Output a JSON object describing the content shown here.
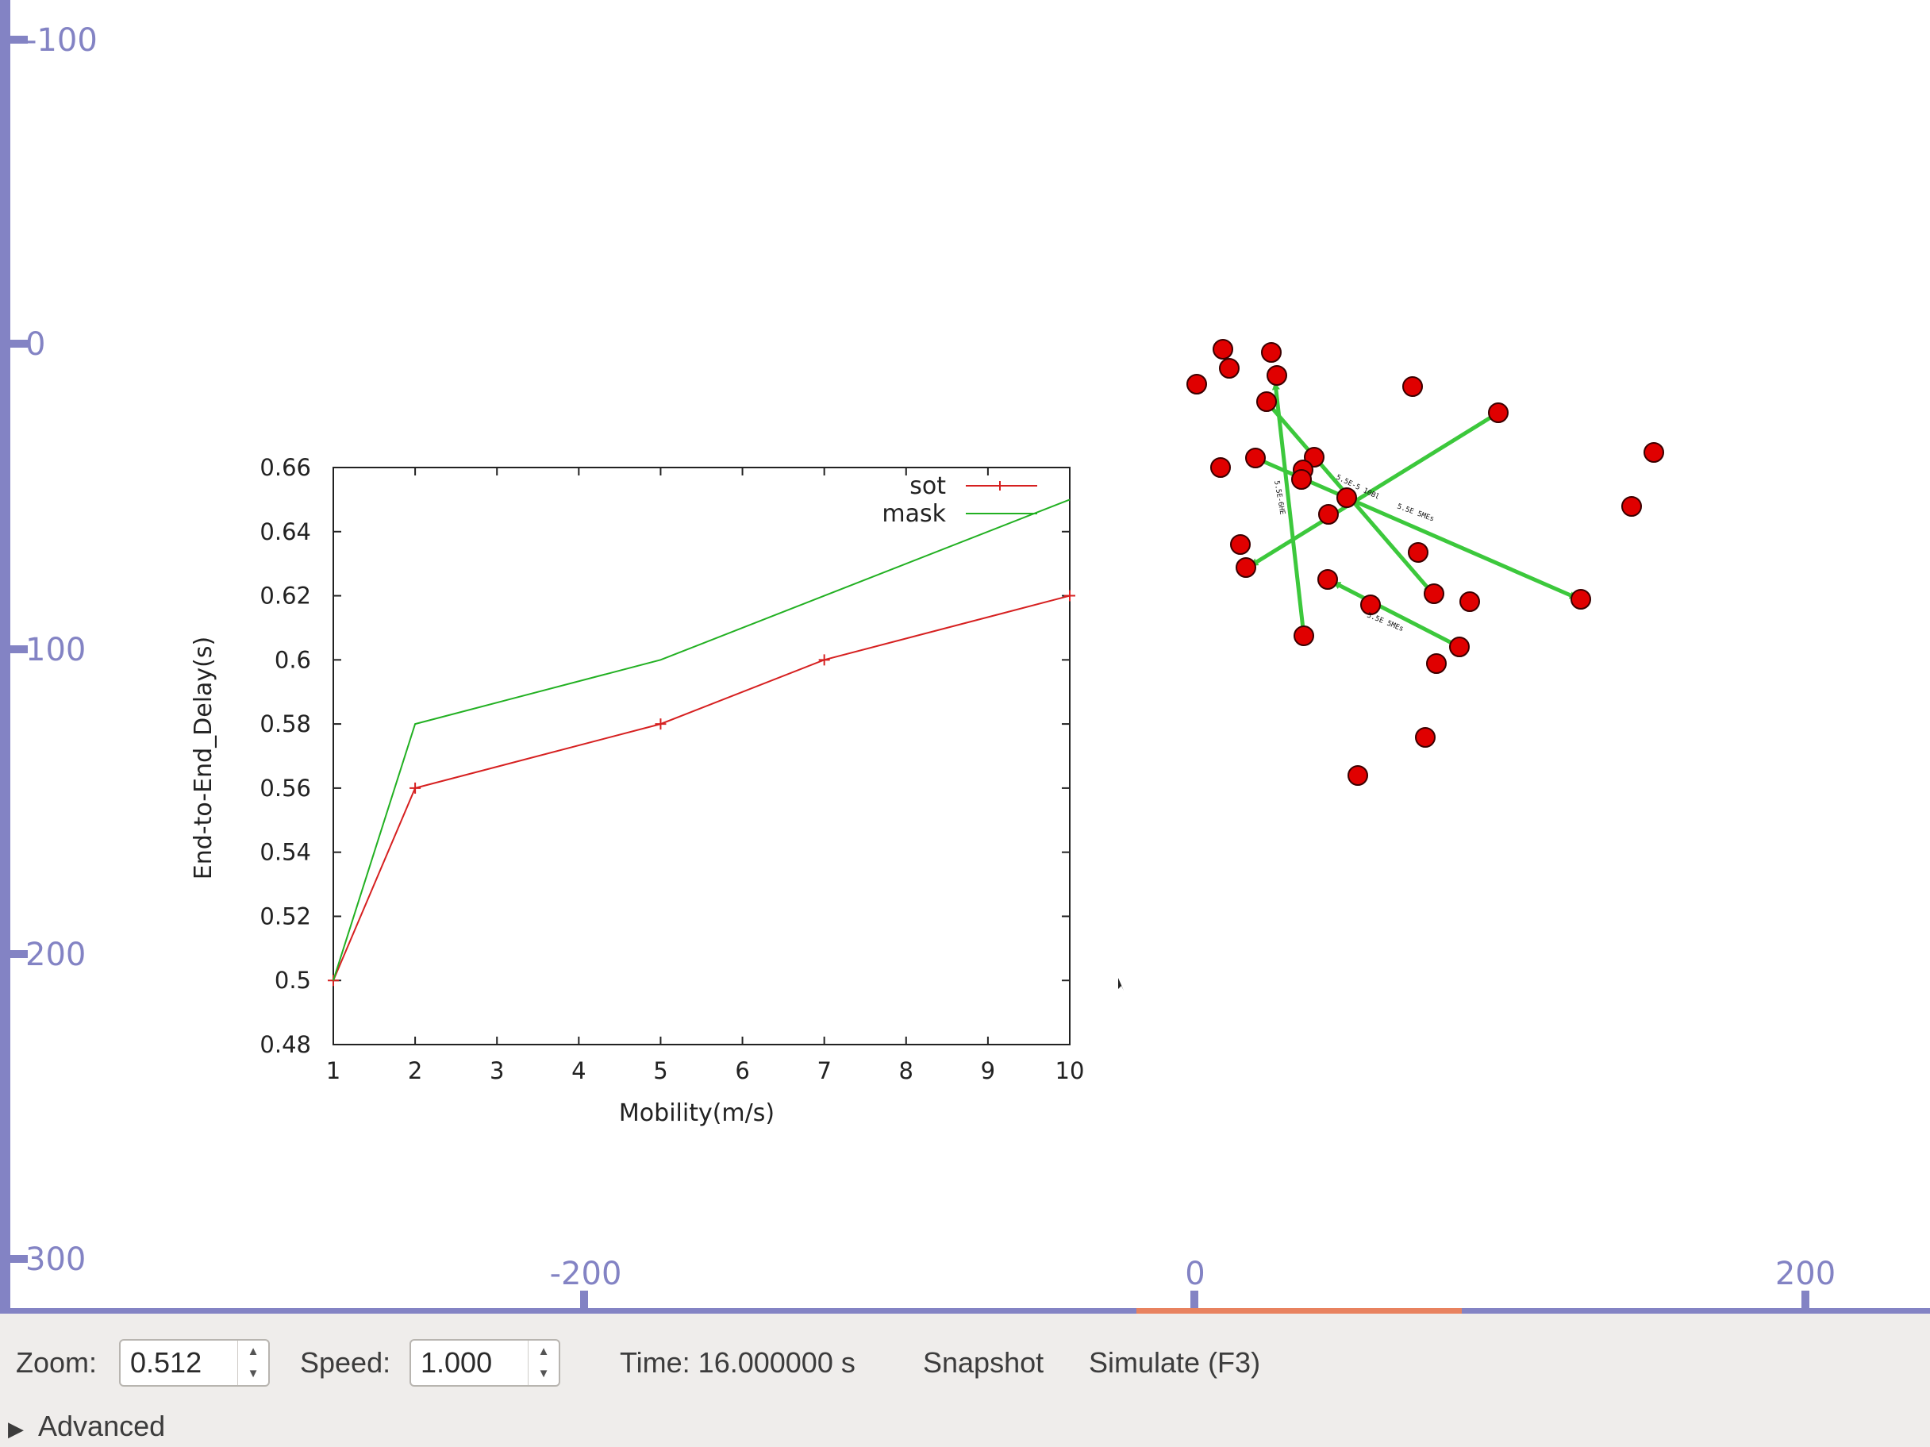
{
  "viewport": {
    "ruler_left_labels": [
      "-100",
      "0",
      "100",
      "200",
      "300"
    ],
    "ruler_bottom_labels": [
      "-200",
      "0",
      "200"
    ],
    "colors": {
      "ruler": "#8383c4",
      "progress": "#e8825f",
      "node": "#e00000",
      "link": "#3cc83c"
    }
  },
  "chart_data": {
    "type": "line",
    "x": [
      1,
      2,
      5,
      7,
      10
    ],
    "xticks": [
      "1",
      "2",
      "3",
      "4",
      "5",
      "6",
      "7",
      "8",
      "9",
      "10"
    ],
    "yticks": [
      "0.48",
      "0.5",
      "0.52",
      "0.54",
      "0.56",
      "0.58",
      "0.6",
      "0.62",
      "0.64",
      "0.66"
    ],
    "xlim": [
      1,
      10
    ],
    "ylim": [
      0.48,
      0.66
    ],
    "xlabel": "Mobility(m/s)",
    "ylabel": "End-to-End_Delay(s)",
    "legend_position": "top-right",
    "series": [
      {
        "name": "sot",
        "values": [
          0.5,
          0.56,
          0.58,
          0.6,
          0.62
        ],
        "color": "#d62020",
        "marker": "plus"
      },
      {
        "name": "mask",
        "values": [
          0.5,
          0.58,
          0.6,
          0.62,
          0.65
        ],
        "color": "#22b022",
        "marker": "none"
      }
    ]
  },
  "controls": {
    "zoom_label": "Zoom:",
    "zoom_value": "0.512",
    "speed_label": "Speed:",
    "speed_value": "1.000",
    "time_text": "Time: 16.000000 s",
    "snapshot_label": "Snapshot",
    "simulate_label": "Simulate (F3)",
    "advanced_label": "Advanced",
    "spin_up_icon": "spin-up-arrow",
    "spin_down_icon": "spin-down-arrow",
    "expander_icon": "triangle-right"
  }
}
